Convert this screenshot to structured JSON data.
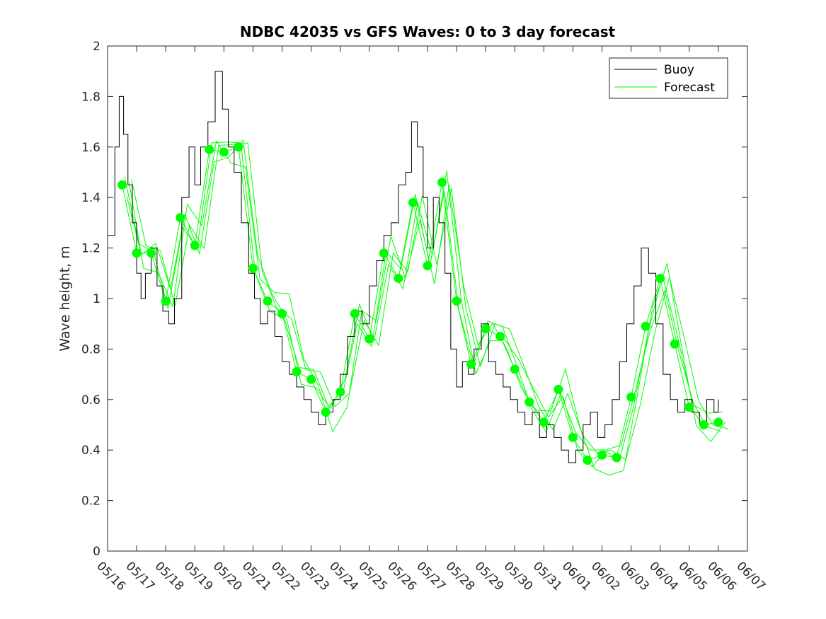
{
  "chart_data": {
    "type": "line",
    "title": "NDBC 42035 vs GFS Waves: 0 to 3 day forecast",
    "xlabel": "",
    "ylabel": "Wave height, m",
    "ylim": [
      0,
      2
    ],
    "yticks": [
      "0",
      "0.2",
      "0.4",
      "0.6",
      "0.8",
      "1",
      "1.2",
      "1.4",
      "1.6",
      "1.8",
      "2"
    ],
    "xticks": [
      "05/16",
      "05/17",
      "05/18",
      "05/19",
      "05/20",
      "05/21",
      "05/22",
      "05/23",
      "05/24",
      "05/25",
      "05/26",
      "05/27",
      "05/28",
      "05/29",
      "05/30",
      "05/31",
      "06/01",
      "06/02",
      "06/03",
      "06/04",
      "06/05",
      "06/06",
      "06/07"
    ],
    "x_unit": "days since 05/16",
    "xlim": [
      0,
      22
    ],
    "grid": false,
    "legend": {
      "position": "top-right",
      "entries": [
        "Buoy",
        "Forecast"
      ]
    },
    "colors": {
      "buoy": "#000000",
      "forecast": "#00ff00"
    },
    "series": [
      {
        "name": "Buoy",
        "x": [
          0,
          0.25,
          0.4,
          0.55,
          0.7,
          0.85,
          1.0,
          1.15,
          1.3,
          1.5,
          1.7,
          1.9,
          2.1,
          2.3,
          2.55,
          2.8,
          3.0,
          3.2,
          3.45,
          3.7,
          3.95,
          4.15,
          4.35,
          4.6,
          4.85,
          5.05,
          5.25,
          5.5,
          5.75,
          6.0,
          6.25,
          6.5,
          6.75,
          7.0,
          7.25,
          7.5,
          7.75,
          8.0,
          8.25,
          8.5,
          8.75,
          9.0,
          9.25,
          9.5,
          9.75,
          10.0,
          10.25,
          10.45,
          10.65,
          10.85,
          11.0,
          11.2,
          11.4,
          11.6,
          11.8,
          12.0,
          12.2,
          12.4,
          12.6,
          12.85,
          13.1,
          13.35,
          13.6,
          13.85,
          14.1,
          14.35,
          14.6,
          14.85,
          15.1,
          15.35,
          15.6,
          15.85,
          16.1,
          16.35,
          16.6,
          16.85,
          17.1,
          17.35,
          17.6,
          17.85,
          18.1,
          18.35,
          18.6,
          18.85,
          19.1,
          19.35,
          19.6,
          19.85,
          20.1,
          20.35,
          20.6,
          20.85,
          21.0
        ],
        "values": [
          1.25,
          1.6,
          1.8,
          1.65,
          1.45,
          1.3,
          1.1,
          1.0,
          1.1,
          1.2,
          1.05,
          0.95,
          0.9,
          1.0,
          1.4,
          1.6,
          1.45,
          1.6,
          1.7,
          1.9,
          1.75,
          1.6,
          1.5,
          1.3,
          1.1,
          1.0,
          0.9,
          0.95,
          0.85,
          0.75,
          0.7,
          0.65,
          0.6,
          0.55,
          0.5,
          0.55,
          0.6,
          0.7,
          0.85,
          0.95,
          0.9,
          1.05,
          1.15,
          1.25,
          1.3,
          1.45,
          1.5,
          1.7,
          1.6,
          1.4,
          1.2,
          1.4,
          1.3,
          1.1,
          0.8,
          0.65,
          0.75,
          0.7,
          0.8,
          0.9,
          0.75,
          0.7,
          0.65,
          0.6,
          0.55,
          0.5,
          0.55,
          0.45,
          0.5,
          0.45,
          0.4,
          0.35,
          0.4,
          0.5,
          0.55,
          0.45,
          0.5,
          0.6,
          0.75,
          0.9,
          1.05,
          1.2,
          1.1,
          0.9,
          0.7,
          0.6,
          0.55,
          0.6,
          0.55,
          0.5,
          0.6,
          0.55,
          0.6
        ]
      },
      {
        "name": "Forecast",
        "x": [
          0.5,
          1.0,
          1.5,
          2.0,
          2.5,
          3.0,
          3.5,
          4.0,
          4.5,
          5.0,
          5.5,
          6.0,
          6.5,
          7.0,
          7.5,
          8.0,
          8.5,
          9.0,
          9.5,
          10.0,
          10.5,
          11.0,
          11.5,
          12.0,
          12.5,
          13.0,
          13.5,
          14.0,
          14.5,
          15.0,
          15.5,
          16.0,
          16.5,
          17.0,
          17.5,
          18.0,
          18.5,
          19.0,
          19.5,
          20.0,
          20.5,
          21.0
        ],
        "values": [
          1.45,
          1.18,
          1.18,
          0.99,
          1.32,
          1.21,
          1.59,
          1.58,
          1.6,
          1.12,
          0.99,
          0.94,
          0.71,
          0.68,
          0.55,
          0.63,
          0.94,
          0.84,
          1.18,
          1.08,
          1.38,
          1.13,
          1.46,
          0.99,
          0.74,
          0.88,
          0.85,
          0.72,
          0.59,
          0.51,
          0.64,
          0.45,
          0.36,
          0.38,
          0.37,
          0.61,
          0.89,
          1.08,
          0.82,
          0.57,
          0.5,
          0.51
        ]
      }
    ]
  }
}
